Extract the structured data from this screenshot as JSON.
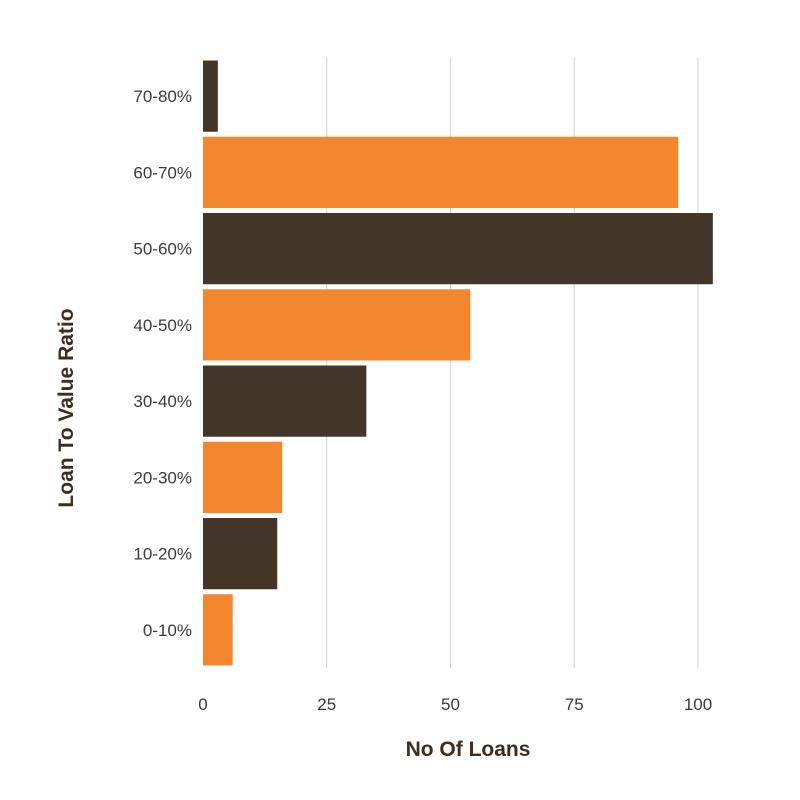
{
  "chart_data": {
    "type": "bar",
    "orientation": "horizontal",
    "categories": [
      "0-10%",
      "10-20%",
      "20-30%",
      "30-40%",
      "40-50%",
      "50-60%",
      "60-70%",
      "70-80%"
    ],
    "values": [
      6,
      15,
      16,
      33,
      54,
      103,
      96,
      3
    ],
    "bar_colors": [
      "#F28730",
      "#45362A",
      "#F28730",
      "#45362A",
      "#F28730",
      "#45362A",
      "#F28730",
      "#45362A"
    ],
    "title": "",
    "xlabel": "No Of Loans",
    "ylabel": "Loan To Value Ratio",
    "xlim": [
      0,
      105
    ],
    "xticks": [
      0,
      25,
      50,
      75,
      100
    ],
    "grid": "vertical"
  }
}
